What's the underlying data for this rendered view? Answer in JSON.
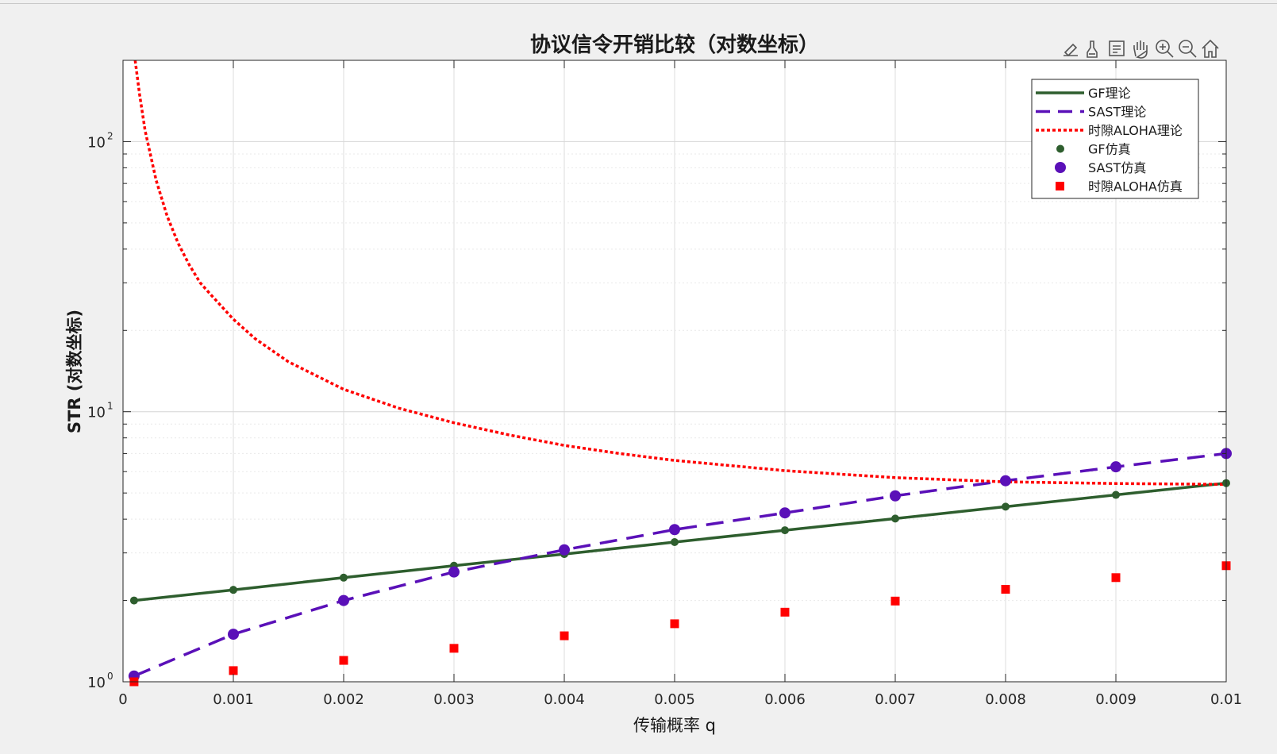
{
  "chart_data": {
    "type": "line",
    "title": "协议信令开销比较（对数坐标）",
    "xlabel": "传输概率 q",
    "ylabel": "STR (对数坐标)",
    "xlim": [
      0,
      0.01
    ],
    "ylim": [
      1,
      200
    ],
    "yscale": "log",
    "grid": true,
    "minor_grid": true,
    "legend_position": "top-right",
    "x_ticks": [
      "0",
      "0.001",
      "0.002",
      "0.003",
      "0.004",
      "0.005",
      "0.006",
      "0.007",
      "0.008",
      "0.009",
      "0.01"
    ],
    "y_ticks": [
      {
        "value": 1,
        "base": "10",
        "exp": "0"
      },
      {
        "value": 10,
        "base": "10",
        "exp": "1"
      },
      {
        "value": 100,
        "base": "10",
        "exp": "2"
      }
    ],
    "series": [
      {
        "name": "GF理论",
        "kind": "line",
        "style": "solid",
        "color": "#2e5e2e",
        "x": [
          0.0001,
          0.001,
          0.002,
          0.003,
          0.004,
          0.005,
          0.006,
          0.007,
          0.008,
          0.009,
          0.01
        ],
        "y": [
          2.0,
          2.19,
          2.43,
          2.69,
          2.97,
          3.29,
          3.64,
          4.02,
          4.45,
          4.92,
          5.44
        ]
      },
      {
        "name": "SAST理论",
        "kind": "line",
        "style": "dashed",
        "color": "#5a10b8",
        "x": [
          0.0001,
          0.001,
          0.002,
          0.003,
          0.004,
          0.005,
          0.006,
          0.007,
          0.008,
          0.009,
          0.01
        ],
        "y": [
          1.05,
          1.5,
          2.0,
          2.55,
          3.08,
          3.66,
          4.22,
          4.88,
          5.55,
          6.25,
          7.0
        ]
      },
      {
        "name": "时隙ALOHA理论",
        "kind": "line",
        "style": "dotted",
        "color": "#ff0000",
        "x": [
          0.00011,
          0.00015,
          0.0002,
          0.0003,
          0.0004,
          0.0005,
          0.0006,
          0.0007,
          0.0008,
          0.001,
          0.0012,
          0.0015,
          0.002,
          0.0025,
          0.003,
          0.0035,
          0.004,
          0.0045,
          0.005,
          0.006,
          0.007,
          0.008,
          0.009,
          0.01
        ],
        "y": [
          200,
          150,
          110,
          72,
          53,
          42,
          35,
          30,
          27,
          22.0,
          18.6,
          15.3,
          12.1,
          10.3,
          9.1,
          8.2,
          7.5,
          7.0,
          6.6,
          6.05,
          5.7,
          5.5,
          5.42,
          5.38
        ]
      },
      {
        "name": "GF仿真",
        "kind": "marker",
        "marker": "circle-small",
        "color": "#2e5e2e",
        "x": [
          0.0001,
          0.001,
          0.002,
          0.003,
          0.004,
          0.005,
          0.006,
          0.007,
          0.008,
          0.009,
          0.01
        ],
        "y": [
          2.0,
          2.19,
          2.43,
          2.69,
          2.97,
          3.29,
          3.64,
          4.02,
          4.45,
          4.92,
          5.44
        ]
      },
      {
        "name": "SAST仿真",
        "kind": "marker",
        "marker": "circle-large",
        "color": "#5a10b8",
        "x": [
          0.0001,
          0.001,
          0.002,
          0.003,
          0.004,
          0.005,
          0.006,
          0.007,
          0.008,
          0.009,
          0.01
        ],
        "y": [
          1.05,
          1.5,
          2.0,
          2.55,
          3.08,
          3.66,
          4.22,
          4.88,
          5.55,
          6.25,
          7.0
        ]
      },
      {
        "name": "时隙ALOHA仿真",
        "kind": "marker",
        "marker": "square",
        "color": "#ff0000",
        "x": [
          0.0001,
          0.001,
          0.002,
          0.003,
          0.004,
          0.005,
          0.006,
          0.007,
          0.008,
          0.009,
          0.01
        ],
        "y": [
          1.0,
          1.1,
          1.2,
          1.33,
          1.48,
          1.64,
          1.81,
          1.99,
          2.2,
          2.43,
          2.69
        ]
      }
    ]
  },
  "toolbar": {
    "icons": [
      "edit-icon",
      "brush-icon",
      "datatip-icon",
      "pan-icon",
      "zoom-in-icon",
      "zoom-out-icon",
      "home-icon"
    ]
  }
}
